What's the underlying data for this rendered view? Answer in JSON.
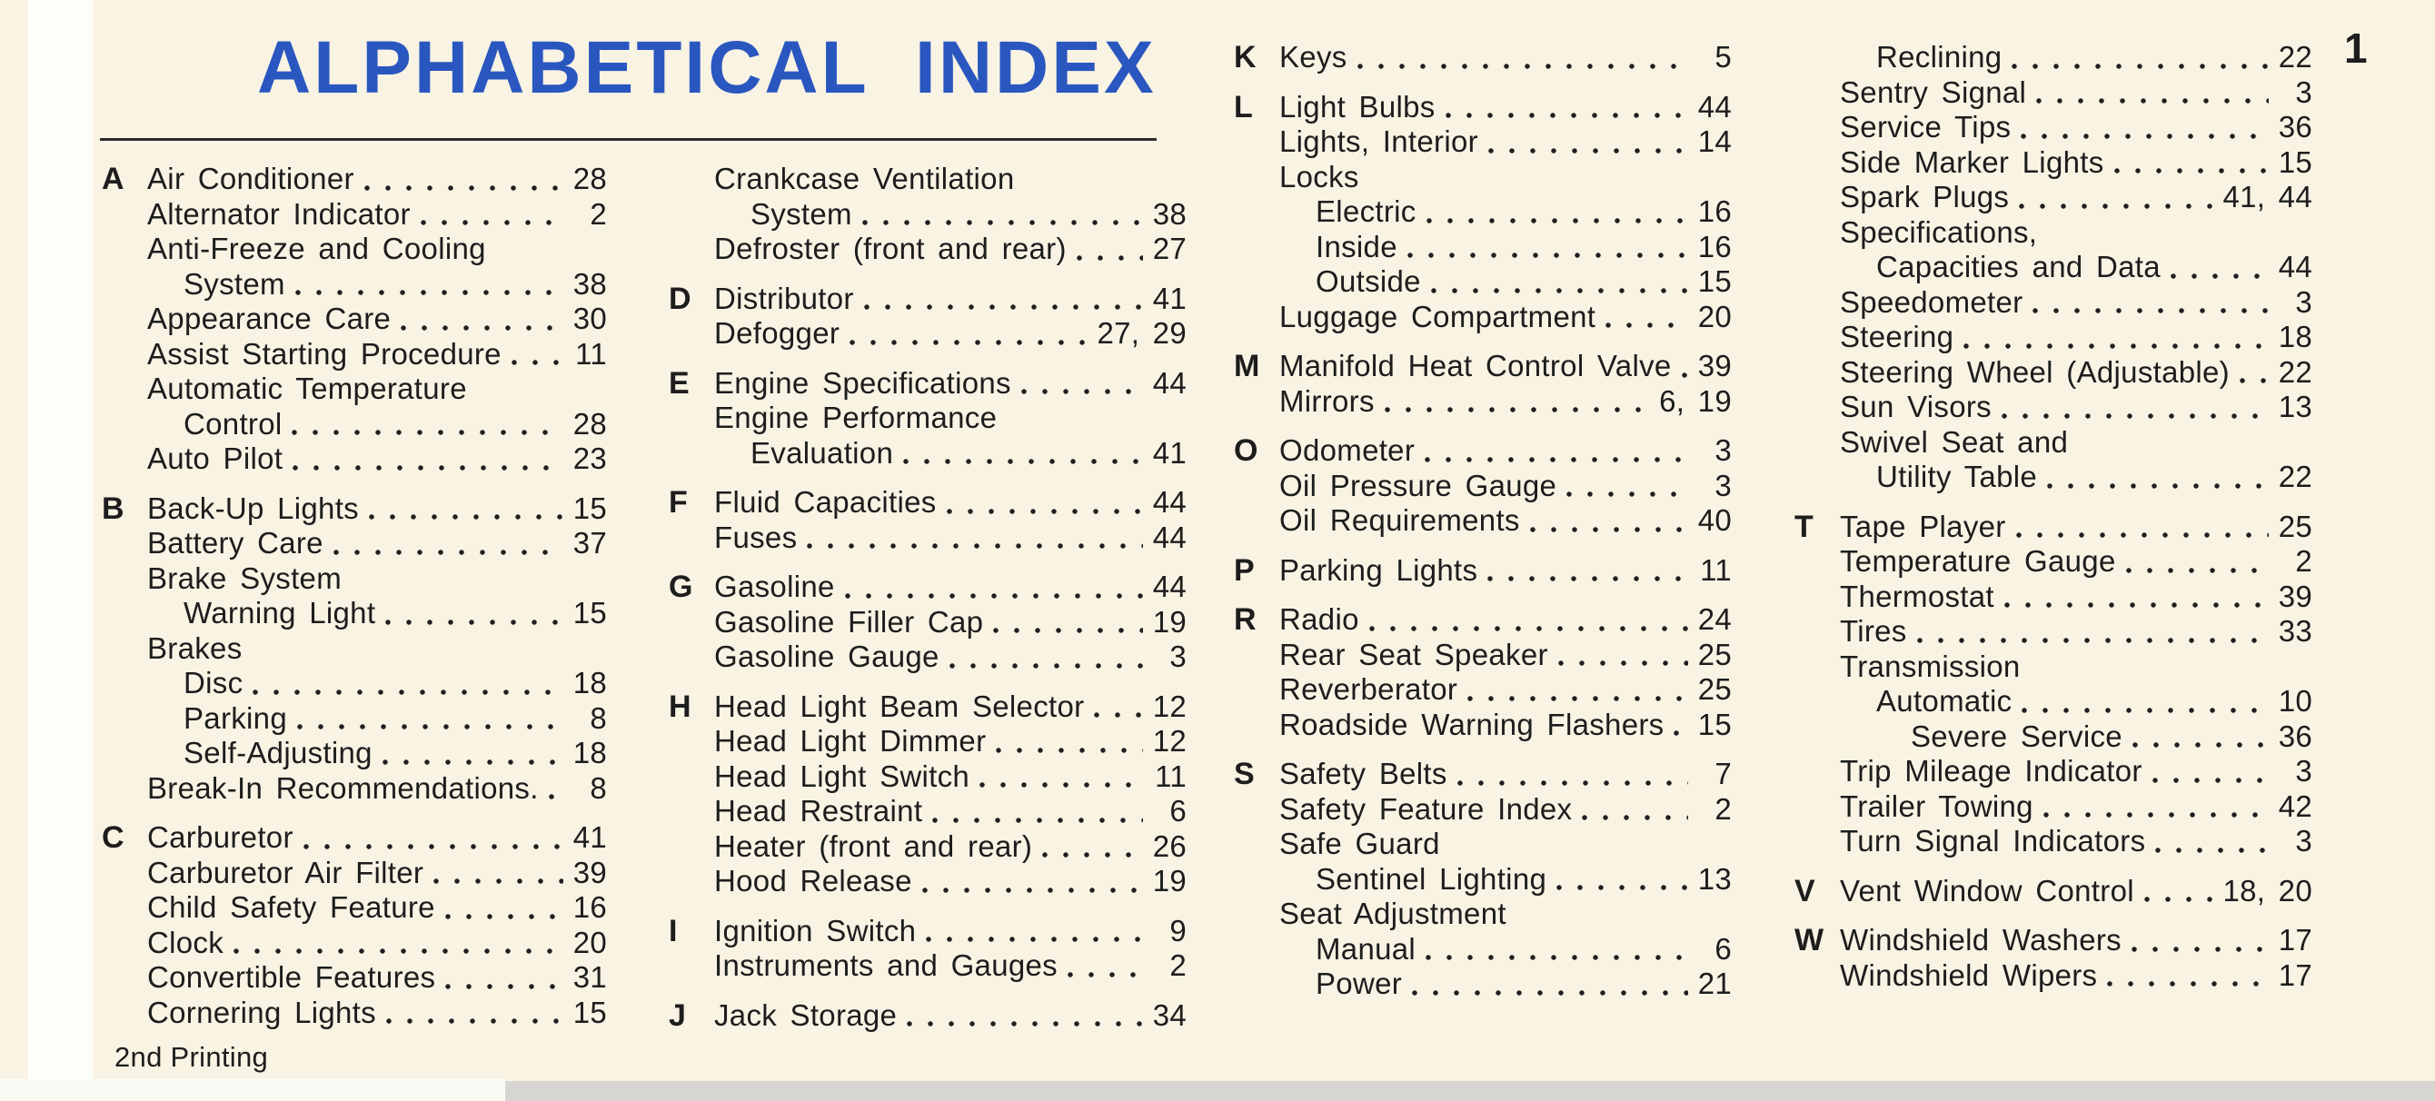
{
  "page": {
    "title": "ALPHABETICAL INDEX",
    "page_number": "1",
    "footer": "2nd Printing",
    "colors": {
      "title_blue": "#2a56c0",
      "paper": "#f8f3e3",
      "ink": "#1d1d1d"
    }
  },
  "index": {
    "columns": [
      {
        "groups": [
          {
            "letter": "A",
            "entries": [
              {
                "text": "Air Conditioner",
                "page": "28"
              },
              {
                "text": "Alternator Indicator",
                "page": "2"
              },
              {
                "text": "Anti-Freeze and Cooling",
                "page": ""
              },
              {
                "text": "System",
                "page": "38",
                "indent": 1
              },
              {
                "text": "Appearance Care",
                "page": "30"
              },
              {
                "text": "Assist Starting Procedure",
                "page": "11"
              },
              {
                "text": "Automatic Temperature",
                "page": ""
              },
              {
                "text": "Control",
                "page": "28",
                "indent": 1
              },
              {
                "text": "Auto Pilot",
                "page": "23"
              }
            ]
          },
          {
            "letter": "B",
            "entries": [
              {
                "text": "Back-Up Lights",
                "page": "15"
              },
              {
                "text": "Battery Care",
                "page": "37"
              },
              {
                "text": "Brake System",
                "page": ""
              },
              {
                "text": "Warning Light",
                "page": "15",
                "indent": 1
              },
              {
                "text": "Brakes",
                "page": ""
              },
              {
                "text": "Disc",
                "page": "18",
                "indent": 1
              },
              {
                "text": "Parking",
                "page": "8",
                "indent": 1
              },
              {
                "text": "Self-Adjusting",
                "page": "18",
                "indent": 1
              },
              {
                "text": "Break-In Recommendations.",
                "page": "8"
              }
            ]
          },
          {
            "letter": "C",
            "entries": [
              {
                "text": "Carburetor",
                "page": "41"
              },
              {
                "text": "Carburetor Air Filter",
                "page": "39"
              },
              {
                "text": "Child Safety Feature",
                "page": "16"
              },
              {
                "text": "Clock",
                "page": "20"
              },
              {
                "text": "Convertible Features",
                "page": "31"
              },
              {
                "text": "Cornering Lights",
                "page": "15"
              }
            ]
          }
        ]
      },
      {
        "groups": [
          {
            "letter": "",
            "entries": [
              {
                "text": "Crankcase Ventilation",
                "page": ""
              },
              {
                "text": "System",
                "page": "38",
                "indent": 1
              },
              {
                "text": "Defroster (front and rear)",
                "page": "27"
              }
            ]
          },
          {
            "letter": "D",
            "entries": [
              {
                "text": "Distributor",
                "page": "41"
              },
              {
                "text": "Defogger",
                "page": "27, 29"
              }
            ]
          },
          {
            "letter": "E",
            "entries": [
              {
                "text": "Engine Specifications",
                "page": "44"
              },
              {
                "text": "Engine Performance",
                "page": ""
              },
              {
                "text": "Evaluation",
                "page": "41",
                "indent": 1
              }
            ]
          },
          {
            "letter": "F",
            "entries": [
              {
                "text": "Fluid Capacities",
                "page": "44"
              },
              {
                "text": "Fuses",
                "page": "44"
              }
            ]
          },
          {
            "letter": "G",
            "entries": [
              {
                "text": "Gasoline",
                "page": "44"
              },
              {
                "text": "Gasoline Filler Cap",
                "page": "19"
              },
              {
                "text": "Gasoline Gauge",
                "page": "3"
              }
            ]
          },
          {
            "letter": "H",
            "entries": [
              {
                "text": "Head Light Beam Selector",
                "page": "12"
              },
              {
                "text": "Head Light Dimmer",
                "page": "12"
              },
              {
                "text": "Head Light Switch",
                "page": "11"
              },
              {
                "text": "Head Restraint",
                "page": "6"
              },
              {
                "text": "Heater (front and rear)",
                "page": "26"
              },
              {
                "text": "Hood Release",
                "page": "19"
              }
            ]
          },
          {
            "letter": "I",
            "entries": [
              {
                "text": "Ignition Switch",
                "page": "9"
              },
              {
                "text": "Instruments and Gauges",
                "page": "2"
              }
            ]
          },
          {
            "letter": "J",
            "entries": [
              {
                "text": "Jack Storage",
                "page": "34"
              }
            ]
          }
        ]
      },
      {
        "groups": [
          {
            "letter": "K",
            "entries": [
              {
                "text": "Keys",
                "page": "5"
              }
            ]
          },
          {
            "letter": "L",
            "entries": [
              {
                "text": "Light Bulbs",
                "page": "44"
              },
              {
                "text": "Lights, Interior",
                "page": "14"
              },
              {
                "text": "Locks",
                "page": ""
              },
              {
                "text": "Electric",
                "page": "16",
                "indent": 1
              },
              {
                "text": "Inside",
                "page": "16",
                "indent": 1
              },
              {
                "text": "Outside",
                "page": "15",
                "indent": 1
              },
              {
                "text": "Luggage Compartment",
                "page": "20"
              }
            ]
          },
          {
            "letter": "M",
            "entries": [
              {
                "text": "Manifold Heat Control Valve",
                "page": "39"
              },
              {
                "text": "Mirrors",
                "page": "6, 19"
              }
            ]
          },
          {
            "letter": "O",
            "entries": [
              {
                "text": "Odometer",
                "page": "3"
              },
              {
                "text": "Oil Pressure Gauge",
                "page": "3"
              },
              {
                "text": "Oil Requirements",
                "page": "40"
              }
            ]
          },
          {
            "letter": "P",
            "entries": [
              {
                "text": "Parking Lights",
                "page": "11"
              }
            ]
          },
          {
            "letter": "R",
            "entries": [
              {
                "text": "Radio",
                "page": "24"
              },
              {
                "text": "Rear Seat Speaker",
                "page": "25"
              },
              {
                "text": "Reverberator",
                "page": "25"
              },
              {
                "text": "Roadside Warning Flashers",
                "page": "15"
              }
            ]
          },
          {
            "letter": "S",
            "entries": [
              {
                "text": "Safety Belts",
                "page": "7"
              },
              {
                "text": "Safety Feature Index",
                "page": "2"
              },
              {
                "text": "Safe Guard",
                "page": ""
              },
              {
                "text": "Sentinel Lighting",
                "page": "13",
                "indent": 1
              },
              {
                "text": "Seat Adjustment",
                "page": ""
              },
              {
                "text": "Manual",
                "page": "6",
                "indent": 1
              },
              {
                "text": "Power",
                "page": "21",
                "indent": 1
              }
            ]
          }
        ]
      },
      {
        "groups": [
          {
            "letter": "",
            "entries": [
              {
                "text": "Reclining",
                "page": "22",
                "indent": 1
              },
              {
                "text": "Sentry Signal",
                "page": "3"
              },
              {
                "text": "Service Tips",
                "page": "36"
              },
              {
                "text": "Side Marker Lights",
                "page": "15"
              },
              {
                "text": "Spark Plugs",
                "page": "41, 44"
              },
              {
                "text": "Specifications,",
                "page": ""
              },
              {
                "text": "Capacities and Data",
                "page": "44",
                "indent": 1
              },
              {
                "text": "Speedometer",
                "page": "3"
              },
              {
                "text": "Steering",
                "page": "18"
              },
              {
                "text": "Steering Wheel (Adjustable)",
                "page": "22"
              },
              {
                "text": "Sun Visors",
                "page": "13"
              },
              {
                "text": "Swivel Seat and",
                "page": ""
              },
              {
                "text": "Utility Table",
                "page": "22",
                "indent": 1
              }
            ]
          },
          {
            "letter": "T",
            "entries": [
              {
                "text": "Tape Player",
                "page": "25"
              },
              {
                "text": "Temperature Gauge",
                "page": "2"
              },
              {
                "text": "Thermostat",
                "page": "39"
              },
              {
                "text": "Tires",
                "page": "33"
              },
              {
                "text": "Transmission",
                "page": ""
              },
              {
                "text": "Automatic",
                "page": "10",
                "indent": 1
              },
              {
                "text": "Severe Service",
                "page": "36",
                "indent": 2
              },
              {
                "text": "Trip Mileage Indicator",
                "page": "3"
              },
              {
                "text": "Trailer Towing",
                "page": "42"
              },
              {
                "text": "Turn Signal Indicators",
                "page": "3"
              }
            ]
          },
          {
            "letter": "V",
            "entries": [
              {
                "text": "Vent Window Control",
                "page": "18, 20"
              }
            ]
          },
          {
            "letter": "W",
            "entries": [
              {
                "text": "Windshield Washers",
                "page": "17"
              },
              {
                "text": "Windshield Wipers",
                "page": "17"
              }
            ]
          }
        ]
      }
    ]
  }
}
